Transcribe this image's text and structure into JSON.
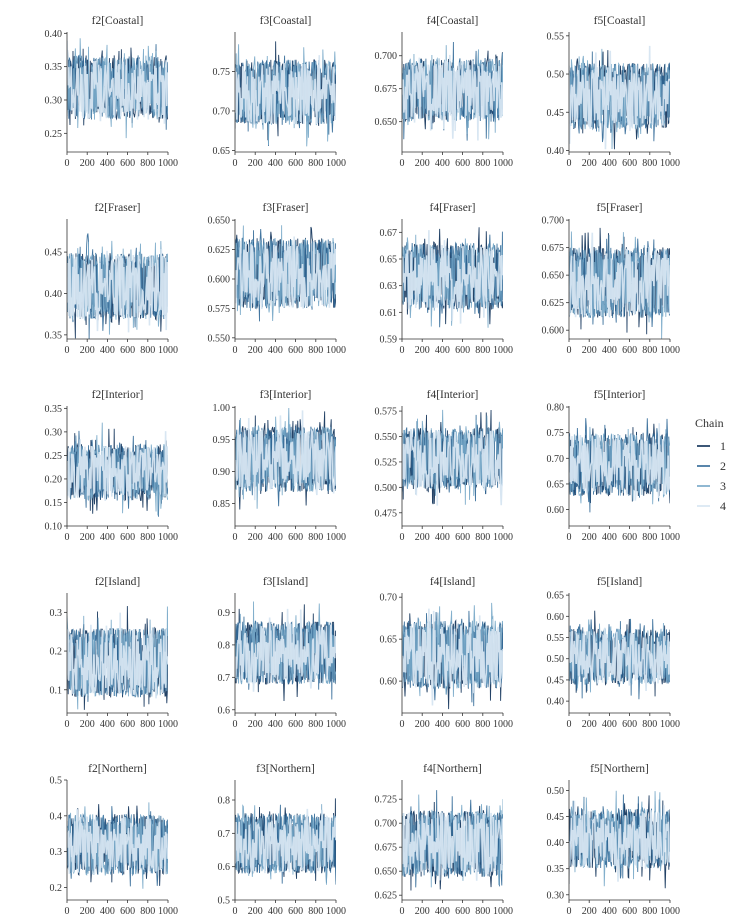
{
  "chart_data": {
    "type": "line",
    "description_kind": "trace",
    "legend": {
      "title": "Chain",
      "position": "right",
      "entries": [
        "1",
        "2",
        "3",
        "4"
      ],
      "colors": [
        "#0b2d55",
        "#2f6796",
        "#74a6c6",
        "#d6e5f1"
      ]
    },
    "x_ticks": [
      0,
      200,
      400,
      600,
      800,
      1000
    ],
    "x_tick_labels": [
      "0",
      "200",
      "400",
      "600",
      "800",
      "1000"
    ],
    "iterations": 1000,
    "panels": [
      {
        "title": "f2[Coastal]",
        "yticks": [
          0.25,
          0.3,
          0.35,
          0.4
        ],
        "ytick_labels": [
          "0.25",
          "0.30",
          "0.35",
          "0.40"
        ],
        "ylim": [
          0.222,
          0.402
        ],
        "center": 0.315,
        "modes": [
          0.283,
          0.355
        ],
        "spread": 0.012,
        "spike": 0.035
      },
      {
        "title": "f3[Coastal]",
        "yticks": [
          0.65,
          0.7,
          0.75
        ],
        "ytick_labels": [
          "0.65",
          "0.70",
          "0.75"
        ],
        "ylim": [
          0.648,
          0.8
        ],
        "center": 0.722,
        "modes": [
          0.692,
          0.755
        ],
        "spread": 0.01,
        "spike": 0.03
      },
      {
        "title": "f4[Coastal]",
        "yticks": [
          0.65,
          0.675,
          0.7
        ],
        "ytick_labels": [
          "0.650",
          "0.675",
          "0.700"
        ],
        "ylim": [
          0.627,
          0.718
        ],
        "center": 0.674,
        "modes": [
          0.656,
          0.692
        ],
        "spread": 0.006,
        "spike": 0.018
      },
      {
        "title": "f5[Coastal]",
        "yticks": [
          0.4,
          0.45,
          0.5,
          0.55
        ],
        "ytick_labels": [
          "0.40",
          "0.45",
          "0.50",
          "0.55"
        ],
        "ylim": [
          0.398,
          0.555
        ],
        "center": 0.47,
        "modes": [
          0.438,
          0.505
        ],
        "spread": 0.01,
        "spike": 0.032
      },
      {
        "title": "f2[Fraser]",
        "yticks": [
          0.35,
          0.4,
          0.45
        ],
        "ytick_labels": [
          "0.35",
          "0.40",
          "0.45"
        ],
        "ylim": [
          0.345,
          0.49
        ],
        "center": 0.408,
        "modes": [
          0.378,
          0.44
        ],
        "spread": 0.009,
        "spike": 0.028
      },
      {
        "title": "f3[Fraser]",
        "yticks": [
          0.55,
          0.575,
          0.6,
          0.625,
          0.65
        ],
        "ytick_labels": [
          "0.550",
          "0.575",
          "0.600",
          "0.625",
          "0.650"
        ],
        "ylim": [
          0.549,
          0.651
        ],
        "center": 0.603,
        "modes": [
          0.582,
          0.628
        ],
        "spread": 0.007,
        "spike": 0.02
      },
      {
        "title": "f4[Fraser]",
        "yticks": [
          0.59,
          0.61,
          0.63,
          0.65,
          0.67
        ],
        "ytick_labels": [
          "0.59",
          "0.61",
          "0.63",
          "0.65",
          "0.67"
        ],
        "ylim": [
          0.59,
          0.68
        ],
        "center": 0.637,
        "modes": [
          0.618,
          0.656
        ],
        "spread": 0.006,
        "spike": 0.017
      },
      {
        "title": "f5[Fraser]",
        "yticks": [
          0.6,
          0.625,
          0.65,
          0.675,
          0.7
        ],
        "ytick_labels": [
          "0.600",
          "0.625",
          "0.650",
          "0.675",
          "0.700"
        ],
        "ylim": [
          0.592,
          0.701
        ],
        "center": 0.643,
        "modes": [
          0.618,
          0.668
        ],
        "spread": 0.007,
        "spike": 0.022
      },
      {
        "title": "f2[Interior]",
        "yticks": [
          0.1,
          0.15,
          0.2,
          0.25,
          0.3,
          0.35
        ],
        "ytick_labels": [
          "0.10",
          "0.15",
          "0.20",
          "0.25",
          "0.30",
          "0.35"
        ],
        "ylim": [
          0.1,
          0.355
        ],
        "center": 0.215,
        "modes": [
          0.17,
          0.258
        ],
        "spread": 0.016,
        "spike": 0.05
      },
      {
        "title": "f3[Interior]",
        "yticks": [
          0.85,
          0.9,
          0.95,
          1.0
        ],
        "ytick_labels": [
          "0.85",
          "0.90",
          "0.95",
          "1.00"
        ],
        "ylim": [
          0.815,
          1.002
        ],
        "center": 0.918,
        "modes": [
          0.88,
          0.958
        ],
        "spread": 0.012,
        "spike": 0.035
      },
      {
        "title": "f4[Interior]",
        "yticks": [
          0.475,
          0.5,
          0.525,
          0.55,
          0.575
        ],
        "ytick_labels": [
          "0.475",
          "0.500",
          "0.525",
          "0.550",
          "0.575"
        ],
        "ylim": [
          0.462,
          0.58
        ],
        "center": 0.528,
        "modes": [
          0.505,
          0.552
        ],
        "spread": 0.007,
        "spike": 0.022
      },
      {
        "title": "f5[Interior]",
        "yticks": [
          0.6,
          0.65,
          0.7,
          0.75,
          0.8
        ],
        "ytick_labels": [
          "0.60",
          "0.65",
          "0.70",
          "0.75",
          "0.80"
        ],
        "ylim": [
          0.568,
          0.802
        ],
        "center": 0.688,
        "modes": [
          0.64,
          0.735
        ],
        "spread": 0.014,
        "spike": 0.045
      },
      {
        "title": "f2[Island]",
        "yticks": [
          0.1,
          0.2,
          0.3
        ],
        "ytick_labels": [
          "0.1",
          "0.2",
          "0.3"
        ],
        "ylim": [
          0.04,
          0.35
        ],
        "center": 0.17,
        "modes": [
          0.1,
          0.24
        ],
        "spread": 0.02,
        "spike": 0.06
      },
      {
        "title": "f3[Island]",
        "yticks": [
          0.6,
          0.7,
          0.8,
          0.9
        ],
        "ytick_labels": [
          "0.6",
          "0.7",
          "0.8",
          "0.9"
        ],
        "ylim": [
          0.59,
          0.96
        ],
        "center": 0.773,
        "modes": [
          0.7,
          0.85
        ],
        "spread": 0.022,
        "spike": 0.065
      },
      {
        "title": "f4[Island]",
        "yticks": [
          0.6,
          0.65,
          0.7
        ],
        "ytick_labels": [
          "0.60",
          "0.65",
          "0.70"
        ],
        "ylim": [
          0.562,
          0.705
        ],
        "center": 0.63,
        "modes": [
          0.6,
          0.663
        ],
        "spread": 0.009,
        "spike": 0.027
      },
      {
        "title": "f5[Island]",
        "yticks": [
          0.4,
          0.45,
          0.5,
          0.55,
          0.6,
          0.65
        ],
        "ytick_labels": [
          "0.40",
          "0.45",
          "0.50",
          "0.55",
          "0.60",
          "0.65"
        ],
        "ylim": [
          0.372,
          0.655
        ],
        "center": 0.503,
        "modes": [
          0.455,
          0.555
        ],
        "spread": 0.016,
        "spike": 0.048
      },
      {
        "title": "f2[Northern]",
        "yticks": [
          0.2,
          0.3,
          0.4,
          0.5
        ],
        "ytick_labels": [
          "0.2",
          "0.3",
          "0.4",
          "0.5"
        ],
        "ylim": [
          0.165,
          0.5
        ],
        "center": 0.318,
        "modes": [
          0.255,
          0.385
        ],
        "spread": 0.02,
        "spike": 0.06
      },
      {
        "title": "f3[Northern]",
        "yticks": [
          0.5,
          0.6,
          0.7,
          0.8
        ],
        "ytick_labels": [
          "0.5",
          "0.6",
          "0.7",
          "0.8"
        ],
        "ylim": [
          0.5,
          0.86
        ],
        "center": 0.668,
        "modes": [
          0.6,
          0.74
        ],
        "spread": 0.021,
        "spike": 0.062
      },
      {
        "title": "f4[Northern]",
        "yticks": [
          0.625,
          0.65,
          0.675,
          0.7,
          0.725
        ],
        "ytick_labels": [
          "0.625",
          "0.650",
          "0.675",
          "0.700",
          "0.725"
        ],
        "ylim": [
          0.62,
          0.745
        ],
        "center": 0.678,
        "modes": [
          0.652,
          0.705
        ],
        "spread": 0.008,
        "spike": 0.024
      },
      {
        "title": "f5[Northern]",
        "yticks": [
          0.3,
          0.35,
          0.4,
          0.45,
          0.5
        ],
        "ytick_labels": [
          "0.30",
          "0.35",
          "0.40",
          "0.45",
          "0.50"
        ],
        "ylim": [
          0.29,
          0.52
        ],
        "center": 0.408,
        "modes": [
          0.365,
          0.452
        ],
        "spread": 0.014,
        "spike": 0.042
      }
    ]
  }
}
